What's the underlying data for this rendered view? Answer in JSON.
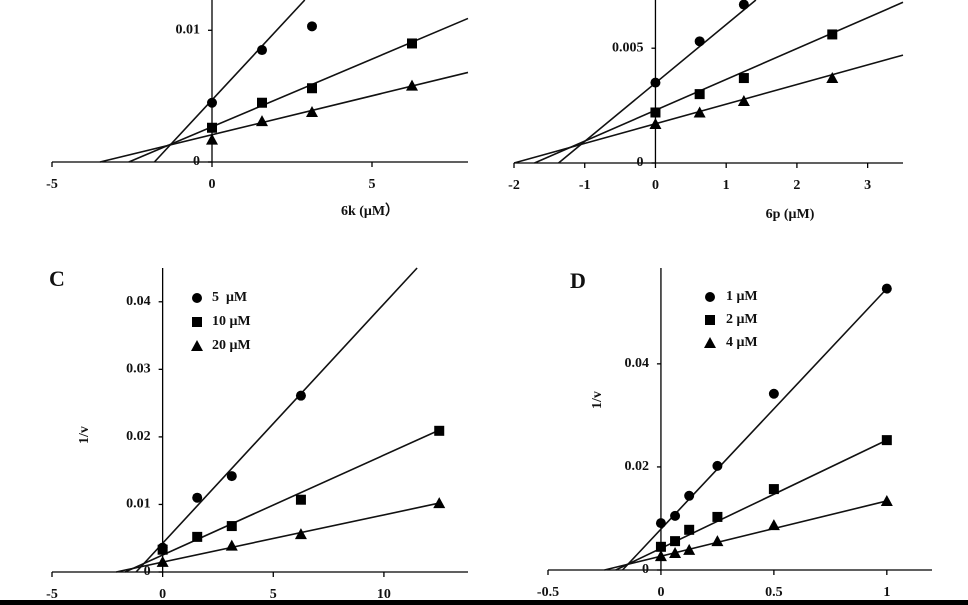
{
  "chart_data": [
    {
      "type": "scatter",
      "xlabel": "6k (μM）",
      "x": [
        0,
        1.5625,
        3.125,
        6.25
      ],
      "xlim": [
        -5,
        8
      ],
      "ylim": [
        0,
        0.0123
      ],
      "xticks": [
        -5,
        0,
        5
      ],
      "yticks": [
        0,
        0.01
      ],
      "series": [
        {
          "marker": "circle",
          "color": "#000",
          "values": [
            0.0045,
            0.0085,
            0.0103,
            null
          ],
          "fit": {
            "x": [
              -1.8,
              2.9
            ],
            "y": [
              0,
              0.0123
            ]
          }
        },
        {
          "marker": "square",
          "color": "#000",
          "values": [
            0.0026,
            0.0045,
            0.0056,
            0.009
          ],
          "fit": {
            "x": [
              -2.6,
              8
            ],
            "y": [
              0,
              0.0109
            ]
          }
        },
        {
          "marker": "triangle",
          "color": "#000",
          "values": [
            0.0017,
            0.0031,
            0.0038,
            0.0058
          ],
          "fit": {
            "x": [
              -3.5,
              8
            ],
            "y": [
              0,
              0.0068
            ]
          }
        }
      ]
    },
    {
      "type": "scatter",
      "xlabel": "6p (μM)",
      "x": [
        0,
        0.625,
        1.25,
        2.5
      ],
      "xlim": [
        -2,
        3.5
      ],
      "ylim": [
        0,
        0.0071
      ],
      "xticks": [
        -2,
        -1,
        0,
        1,
        2,
        3
      ],
      "yticks": [
        0,
        0.005
      ],
      "series": [
        {
          "marker": "circle",
          "color": "#000",
          "values": [
            0.0035,
            0.0053,
            0.0069,
            null
          ],
          "fit": {
            "x": [
              -1.37,
              1.42
            ],
            "y": [
              0,
              0.0071
            ]
          }
        },
        {
          "marker": "square",
          "color": "#000",
          "values": [
            0.0022,
            0.003,
            0.0037,
            0.0056
          ],
          "fit": {
            "x": [
              -1.71,
              3.5
            ],
            "y": [
              0,
              0.007
            ]
          }
        },
        {
          "marker": "triangle",
          "color": "#000",
          "values": [
            0.0017,
            0.0022,
            0.0027,
            0.0037
          ],
          "fit": {
            "x": [
              -2,
              3.5
            ],
            "y": [
              0,
              0.0047
            ]
          }
        }
      ]
    },
    {
      "type": "scatter",
      "panel_label": "C",
      "ylabel": "1/v",
      "x": [
        0,
        1.5625,
        3.125,
        6.25,
        12.5
      ],
      "xlim": [
        -5,
        13.8
      ],
      "ylim": [
        0,
        0.045
      ],
      "xticks": [
        -5,
        0,
        5,
        10
      ],
      "yticks": [
        0,
        0.01,
        0.02,
        0.03,
        0.04
      ],
      "series": [
        {
          "name": "5  μM",
          "marker": "circle",
          "color": "#000",
          "values": [
            0.0036,
            0.011,
            0.0142,
            0.0261,
            null
          ],
          "fit": {
            "x": [
              -1.2,
              11.5
            ],
            "y": [
              0,
              0.045
            ]
          }
        },
        {
          "name": "10 μM",
          "marker": "square",
          "color": "#000",
          "values": [
            0.0033,
            0.0052,
            0.0068,
            0.0107,
            0.0209
          ],
          "fit": {
            "x": [
              -1.7,
              12.5
            ],
            "y": [
              0,
              0.021
            ]
          }
        },
        {
          "name": "20 μM",
          "marker": "triangle",
          "color": "#000",
          "values": [
            0.0015,
            null,
            0.0039,
            0.0056,
            0.0102
          ],
          "fit": {
            "x": [
              -2.1,
              12.5
            ],
            "y": [
              0,
              0.0102
            ]
          }
        }
      ]
    },
    {
      "type": "scatter",
      "panel_label": "D",
      "ylabel": "1/v",
      "x": [
        0,
        0.0625,
        0.125,
        0.25,
        0.5,
        1
      ],
      "xlim": [
        -0.5,
        1.2
      ],
      "ylim": [
        0,
        0.0586
      ],
      "xticks": [
        -0.5,
        0,
        0.5,
        1
      ],
      "yticks": [
        0,
        0.02,
        0.04
      ],
      "series": [
        {
          "name": "1 μM",
          "marker": "circle",
          "color": "#000",
          "values": [
            0.0091,
            0.0105,
            0.0144,
            0.0202,
            0.0342,
            0.0546
          ],
          "fit": {
            "x": [
              -0.17,
              1
            ],
            "y": [
              0,
              0.0546
            ]
          }
        },
        {
          "name": "2 μM",
          "marker": "square",
          "color": "#000",
          "values": [
            0.0045,
            0.0056,
            0.0078,
            0.0103,
            0.0157,
            0.0252
          ],
          "fit": {
            "x": [
              -0.2,
              1
            ],
            "y": [
              0,
              0.0252
            ]
          }
        },
        {
          "name": "4 μM",
          "marker": "triangle",
          "color": "#000",
          "values": [
            0.0027,
            0.0033,
            0.0039,
            0.0056,
            0.0087,
            0.0134
          ],
          "fit": {
            "x": [
              -0.25,
              1
            ],
            "y": [
              0,
              0.0134
            ]
          }
        }
      ]
    }
  ]
}
